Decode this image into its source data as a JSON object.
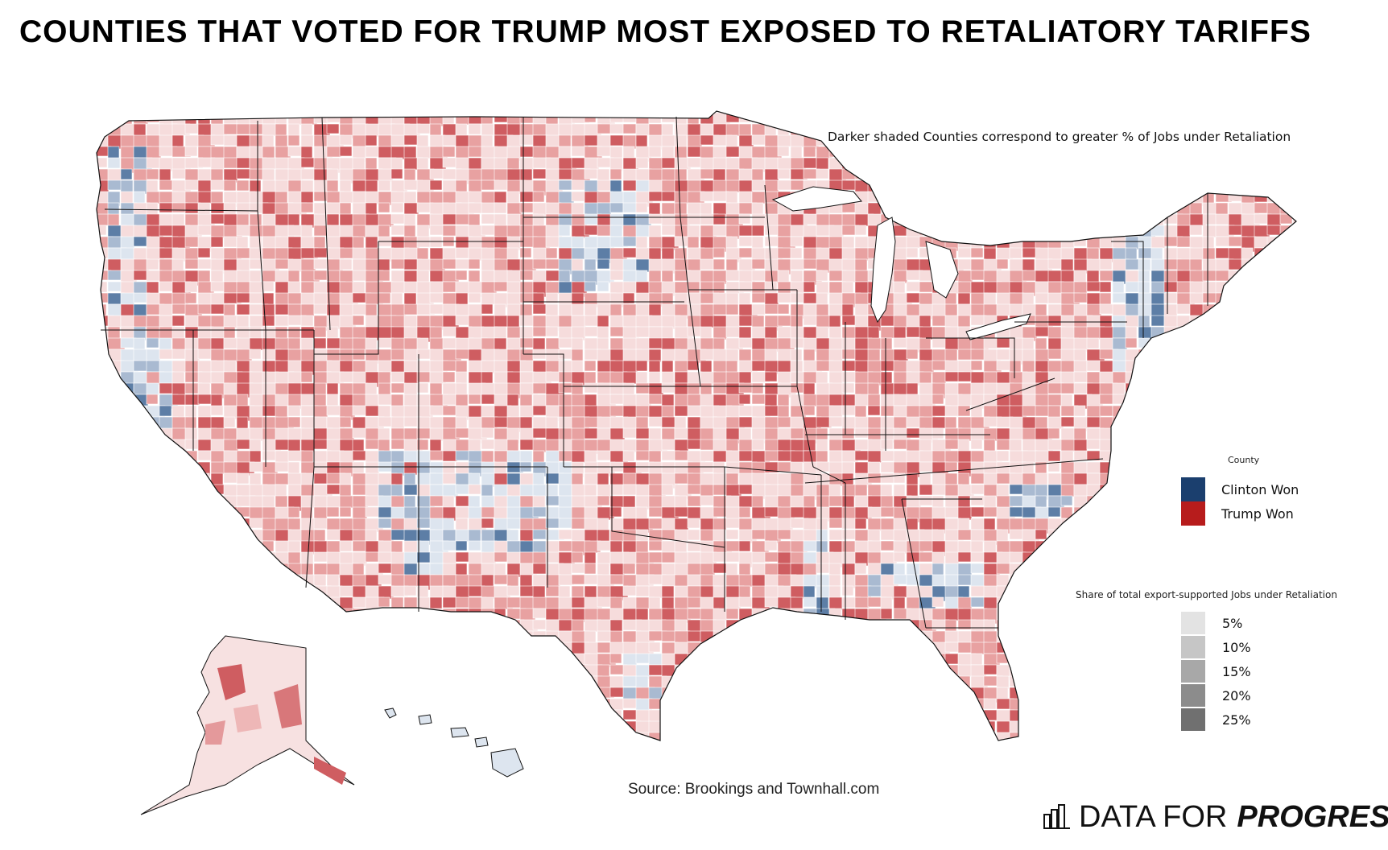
{
  "header": {
    "title": "COUNTIES THAT VOTED FOR TRUMP MOST EXPOSED TO RETALIATORY TARIFFS",
    "subtitle": "Darker shaded Counties correspond to greater % of Jobs under Retaliation"
  },
  "legend": {
    "county_title": "County",
    "items": [
      {
        "label": "Clinton Won",
        "color": "#1b3f6e"
      },
      {
        "label": "Trump Won",
        "color": "#b71c1c"
      }
    ],
    "share_title": "Share of total export-supported Jobs under Retaliation",
    "ramp": [
      {
        "label": "5%",
        "color": "#e3e3e3"
      },
      {
        "label": "10%",
        "color": "#c6c6c6"
      },
      {
        "label": "15%",
        "color": "#a8a8a8"
      },
      {
        "label": "20%",
        "color": "#8c8c8c"
      },
      {
        "label": "25%",
        "color": "#707070"
      }
    ]
  },
  "footer": {
    "source": "Source: Brookings and Townhall.com",
    "brand_plain": "DATA FOR",
    "brand_bold": "PROGRESS"
  },
  "colors": {
    "trump_light": "#f6dcdc",
    "trump_mid": "#e8a1a1",
    "trump_dark": "#cf5d61",
    "clinton_light": "#dde5ef",
    "clinton_mid": "#a9bad1",
    "clinton_dark": "#5d7ea6"
  }
}
